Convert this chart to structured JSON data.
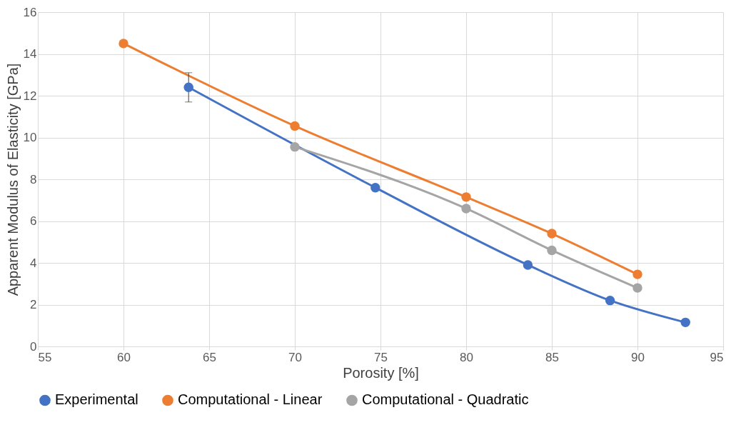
{
  "chart_data": {
    "type": "line",
    "xlabel": "Porosity [%]",
    "ylabel": "Apparent Modulus of Elasticity [GPa]",
    "xlim": [
      55,
      95
    ],
    "xticks": [
      55,
      60,
      65,
      70,
      75,
      80,
      85,
      90,
      95
    ],
    "ylim": [
      0,
      16
    ],
    "yticks": [
      0,
      2,
      4,
      6,
      8,
      10,
      12,
      14,
      16
    ],
    "grid": true,
    "legend": "bottom",
    "marker": "circle",
    "line_style": "solid",
    "series": [
      {
        "name": "Experimental",
        "color": "#4472c4",
        "x": [
          63.8,
          70.0,
          74.7,
          83.6,
          88.4,
          92.8
        ],
        "values": [
          12.4,
          null,
          7.6,
          3.9,
          2.2,
          1.15
        ],
        "errors": [
          [
            11.7,
            13.1
          ],
          null,
          null,
          null,
          null,
          null
        ]
      },
      {
        "name": "Computational - Linear",
        "color": "#ed7d31",
        "x": [
          60,
          70,
          80,
          85,
          90
        ],
        "values": [
          14.5,
          10.55,
          7.15,
          5.4,
          3.45
        ]
      },
      {
        "name": "Computational - Quadratic",
        "color": "#a5a5a5",
        "x": [
          70,
          80,
          85,
          90
        ],
        "values": [
          9.55,
          6.6,
          4.6,
          2.8
        ]
      }
    ]
  }
}
